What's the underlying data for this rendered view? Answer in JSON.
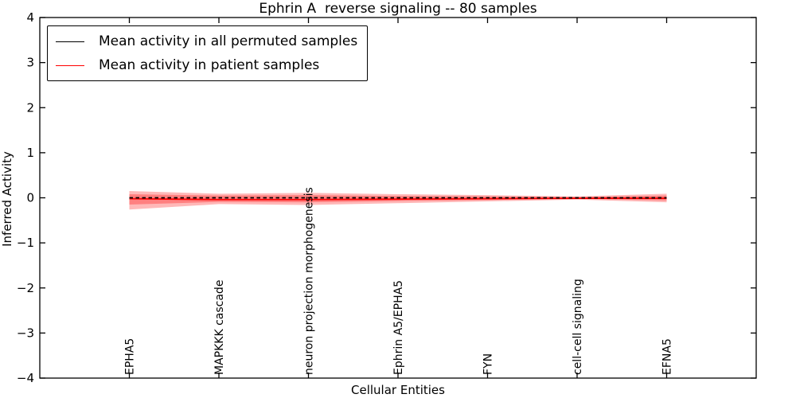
{
  "figure": {
    "title": "Ephrin A  reverse signaling -- 80 samples",
    "background_color": "#ffffff"
  },
  "axes": {
    "xlabel": "Cellular Entities",
    "ylabel": "Inferred Activity",
    "ytick_labels": [
      "4",
      "3",
      "2",
      "1",
      "0",
      "−1",
      "−2",
      "−3",
      "−4"
    ],
    "spine_color": "#000000"
  },
  "legend": {
    "items": [
      {
        "label": "Mean activity in all permuted samples",
        "color": "#000000"
      },
      {
        "label": "Mean activity in patient samples",
        "color": "#ff0000"
      }
    ]
  },
  "chart_data": {
    "type": "line",
    "title": "Ephrin A  reverse signaling -- 80 samples",
    "xlabel": "Cellular Entities",
    "ylabel": "Inferred Activity",
    "ylim": [
      -4,
      4
    ],
    "xlim": [
      -1,
      7
    ],
    "yticks": [
      4,
      3,
      2,
      1,
      0,
      -1,
      -2,
      -3,
      -4
    ],
    "grid": false,
    "legend_position": "upper left",
    "categories": [
      "EPHA5",
      "MAPKKK cascade",
      "neuron projection morphogenesis",
      "Ephrin A5/EPHA5",
      "FYN",
      "cell-cell signaling",
      "EFNA5"
    ],
    "series": [
      {
        "name": "Mean activity in all permuted samples",
        "color": "#000000",
        "line_style": "dashed-overlay",
        "values": [
          0,
          0,
          0,
          0,
          0,
          0,
          0
        ]
      },
      {
        "name": "Mean activity in patient samples",
        "color": "#ff0000",
        "line_style": "solid",
        "values": [
          -0.02,
          -0.04,
          -0.04,
          -0.03,
          -0.02,
          -0.01,
          -0.01
        ]
      }
    ],
    "bands": [
      {
        "name": "patient-std-outer",
        "color": "#ff0000",
        "opacity": 0.28,
        "upper": [
          0.15,
          0.09,
          0.11,
          0.08,
          0.06,
          0.03,
          0.09
        ],
        "lower": [
          -0.26,
          -0.14,
          -0.16,
          -0.12,
          -0.08,
          -0.04,
          -0.1
        ]
      },
      {
        "name": "patient-std-inner",
        "color": "#ff0000",
        "opacity": 0.3,
        "upper": [
          0.08,
          0.05,
          0.06,
          0.04,
          0.03,
          0.015,
          0.05
        ],
        "lower": [
          -0.15,
          -0.09,
          -0.1,
          -0.07,
          -0.05,
          -0.02,
          -0.06
        ]
      }
    ]
  }
}
